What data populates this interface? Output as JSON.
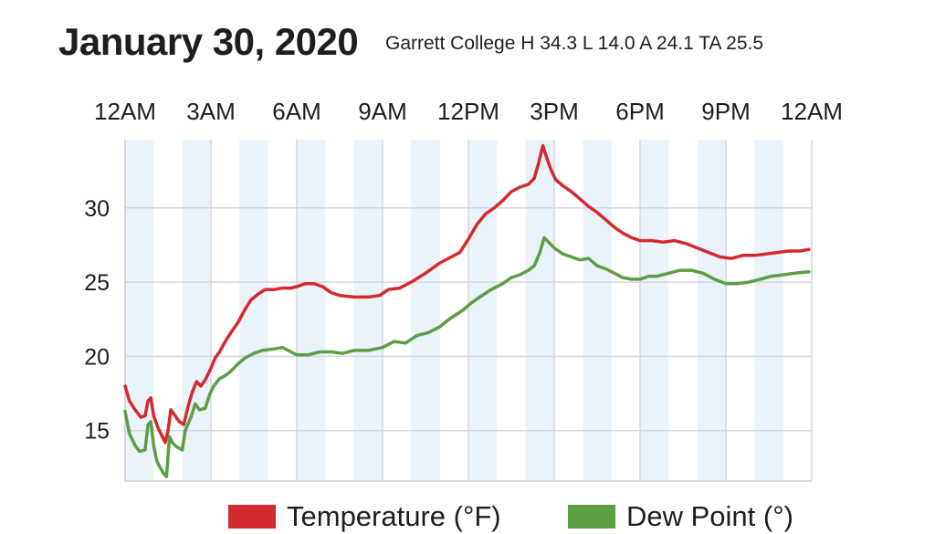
{
  "header": {
    "title": "January 30, 2020",
    "subtitle": "Garrett College H 34.3 L 14.0 A 24.1 TA 25.5"
  },
  "legend": {
    "temperature_label": "Temperature (°F)",
    "dewpoint_label": "Dew Point (°)"
  },
  "colors": {
    "temperature": "#d32a2f",
    "dewpoint": "#5b9e45",
    "band": "#eaf2fa",
    "grid": "#d4d7db"
  },
  "chart_data": {
    "type": "line",
    "title": "January 30, 2020",
    "subtitle": "Garrett College H 34.3 L 14.0 A 24.1 TA 25.5",
    "x_unit": "hours since midnight",
    "xlim": [
      0,
      24
    ],
    "ylim": [
      11.6,
      34.6
    ],
    "x_ticks": [
      0,
      3,
      6,
      9,
      12,
      15,
      18,
      21,
      24
    ],
    "x_tick_labels": [
      "12AM",
      "3AM",
      "6AM",
      "9AM",
      "12PM",
      "3PM",
      "6PM",
      "9PM",
      "12AM"
    ],
    "x_axis_position": "top",
    "y_ticks": [
      15,
      20,
      25,
      30
    ],
    "grid": true,
    "series": [
      {
        "name": "Temperature (°F)",
        "color": "#d32a2f",
        "points": [
          [
            0.0,
            18.0
          ],
          [
            0.15,
            17.0
          ],
          [
            0.35,
            16.4
          ],
          [
            0.55,
            15.9
          ],
          [
            0.7,
            16.0
          ],
          [
            0.8,
            17.0
          ],
          [
            0.9,
            17.2
          ],
          [
            1.0,
            16.0
          ],
          [
            1.15,
            15.2
          ],
          [
            1.3,
            14.6
          ],
          [
            1.4,
            14.2
          ],
          [
            1.5,
            15.0
          ],
          [
            1.6,
            16.4
          ],
          [
            1.75,
            16.0
          ],
          [
            1.9,
            15.6
          ],
          [
            2.05,
            15.4
          ],
          [
            2.2,
            16.6
          ],
          [
            2.35,
            17.6
          ],
          [
            2.5,
            18.3
          ],
          [
            2.65,
            18.0
          ],
          [
            2.8,
            18.4
          ],
          [
            3.0,
            19.2
          ],
          [
            3.15,
            19.9
          ],
          [
            3.3,
            20.3
          ],
          [
            3.5,
            21.0
          ],
          [
            3.7,
            21.6
          ],
          [
            3.95,
            22.3
          ],
          [
            4.2,
            23.2
          ],
          [
            4.4,
            23.8
          ],
          [
            4.65,
            24.2
          ],
          [
            4.9,
            24.5
          ],
          [
            5.2,
            24.5
          ],
          [
            5.5,
            24.6
          ],
          [
            5.8,
            24.6
          ],
          [
            6.0,
            24.7
          ],
          [
            6.3,
            24.9
          ],
          [
            6.6,
            24.9
          ],
          [
            6.9,
            24.7
          ],
          [
            7.2,
            24.3
          ],
          [
            7.5,
            24.1
          ],
          [
            8.0,
            24.0
          ],
          [
            8.5,
            24.0
          ],
          [
            8.9,
            24.1
          ],
          [
            9.2,
            24.5
          ],
          [
            9.6,
            24.6
          ],
          [
            10.0,
            25.0
          ],
          [
            10.5,
            25.6
          ],
          [
            11.0,
            26.3
          ],
          [
            11.4,
            26.7
          ],
          [
            11.7,
            27.0
          ],
          [
            12.0,
            27.9
          ],
          [
            12.3,
            28.9
          ],
          [
            12.6,
            29.6
          ],
          [
            12.9,
            30.0
          ],
          [
            13.2,
            30.5
          ],
          [
            13.5,
            31.1
          ],
          [
            13.8,
            31.4
          ],
          [
            14.1,
            31.6
          ],
          [
            14.3,
            32.0
          ],
          [
            14.45,
            33.0
          ],
          [
            14.6,
            34.2
          ],
          [
            14.75,
            33.3
          ],
          [
            14.9,
            32.5
          ],
          [
            15.05,
            31.9
          ],
          [
            15.3,
            31.5
          ],
          [
            15.6,
            31.1
          ],
          [
            15.9,
            30.6
          ],
          [
            16.2,
            30.1
          ],
          [
            16.5,
            29.7
          ],
          [
            16.8,
            29.2
          ],
          [
            17.1,
            28.7
          ],
          [
            17.4,
            28.3
          ],
          [
            17.7,
            28.0
          ],
          [
            18.0,
            27.8
          ],
          [
            18.4,
            27.8
          ],
          [
            18.8,
            27.7
          ],
          [
            19.2,
            27.8
          ],
          [
            19.6,
            27.6
          ],
          [
            20.0,
            27.3
          ],
          [
            20.4,
            27.0
          ],
          [
            20.8,
            26.7
          ],
          [
            21.2,
            26.6
          ],
          [
            21.6,
            26.8
          ],
          [
            22.0,
            26.8
          ],
          [
            22.4,
            26.9
          ],
          [
            22.8,
            27.0
          ],
          [
            23.2,
            27.1
          ],
          [
            23.6,
            27.1
          ],
          [
            23.9,
            27.2
          ]
        ]
      },
      {
        "name": "Dew Point (°)",
        "color": "#5b9e45",
        "points": [
          [
            0.0,
            16.3
          ],
          [
            0.15,
            14.8
          ],
          [
            0.35,
            14.0
          ],
          [
            0.5,
            13.6
          ],
          [
            0.7,
            13.7
          ],
          [
            0.8,
            15.4
          ],
          [
            0.9,
            15.6
          ],
          [
            1.0,
            14.0
          ],
          [
            1.1,
            13.0
          ],
          [
            1.2,
            12.6
          ],
          [
            1.35,
            12.1
          ],
          [
            1.45,
            11.9
          ],
          [
            1.55,
            14.6
          ],
          [
            1.65,
            14.2
          ],
          [
            1.8,
            13.9
          ],
          [
            2.0,
            13.7
          ],
          [
            2.1,
            15.0
          ],
          [
            2.3,
            15.9
          ],
          [
            2.45,
            16.8
          ],
          [
            2.6,
            16.4
          ],
          [
            2.8,
            16.5
          ],
          [
            2.95,
            17.4
          ],
          [
            3.1,
            18.0
          ],
          [
            3.3,
            18.5
          ],
          [
            3.5,
            18.7
          ],
          [
            3.7,
            19.0
          ],
          [
            3.95,
            19.5
          ],
          [
            4.2,
            19.9
          ],
          [
            4.5,
            20.2
          ],
          [
            4.8,
            20.4
          ],
          [
            5.2,
            20.5
          ],
          [
            5.5,
            20.6
          ],
          [
            5.8,
            20.3
          ],
          [
            6.0,
            20.1
          ],
          [
            6.4,
            20.1
          ],
          [
            6.8,
            20.3
          ],
          [
            7.2,
            20.3
          ],
          [
            7.6,
            20.2
          ],
          [
            8.0,
            20.4
          ],
          [
            8.5,
            20.4
          ],
          [
            9.0,
            20.6
          ],
          [
            9.4,
            21.0
          ],
          [
            9.8,
            20.9
          ],
          [
            10.2,
            21.4
          ],
          [
            10.6,
            21.6
          ],
          [
            11.0,
            22.0
          ],
          [
            11.4,
            22.6
          ],
          [
            11.8,
            23.1
          ],
          [
            12.1,
            23.6
          ],
          [
            12.4,
            24.0
          ],
          [
            12.8,
            24.5
          ],
          [
            13.2,
            24.9
          ],
          [
            13.5,
            25.3
          ],
          [
            13.8,
            25.5
          ],
          [
            14.1,
            25.8
          ],
          [
            14.3,
            26.1
          ],
          [
            14.5,
            27.0
          ],
          [
            14.65,
            28.0
          ],
          [
            14.8,
            27.7
          ],
          [
            15.0,
            27.3
          ],
          [
            15.3,
            26.9
          ],
          [
            15.6,
            26.7
          ],
          [
            15.9,
            26.5
          ],
          [
            16.2,
            26.6
          ],
          [
            16.5,
            26.1
          ],
          [
            16.8,
            25.9
          ],
          [
            17.1,
            25.6
          ],
          [
            17.4,
            25.3
          ],
          [
            17.7,
            25.2
          ],
          [
            18.0,
            25.2
          ],
          [
            18.3,
            25.4
          ],
          [
            18.6,
            25.4
          ],
          [
            19.0,
            25.6
          ],
          [
            19.4,
            25.8
          ],
          [
            19.8,
            25.8
          ],
          [
            20.2,
            25.6
          ],
          [
            20.6,
            25.2
          ],
          [
            21.0,
            24.9
          ],
          [
            21.4,
            24.9
          ],
          [
            21.8,
            25.0
          ],
          [
            22.2,
            25.2
          ],
          [
            22.6,
            25.4
          ],
          [
            23.0,
            25.5
          ],
          [
            23.4,
            25.6
          ],
          [
            23.9,
            25.7
          ]
        ]
      }
    ]
  }
}
